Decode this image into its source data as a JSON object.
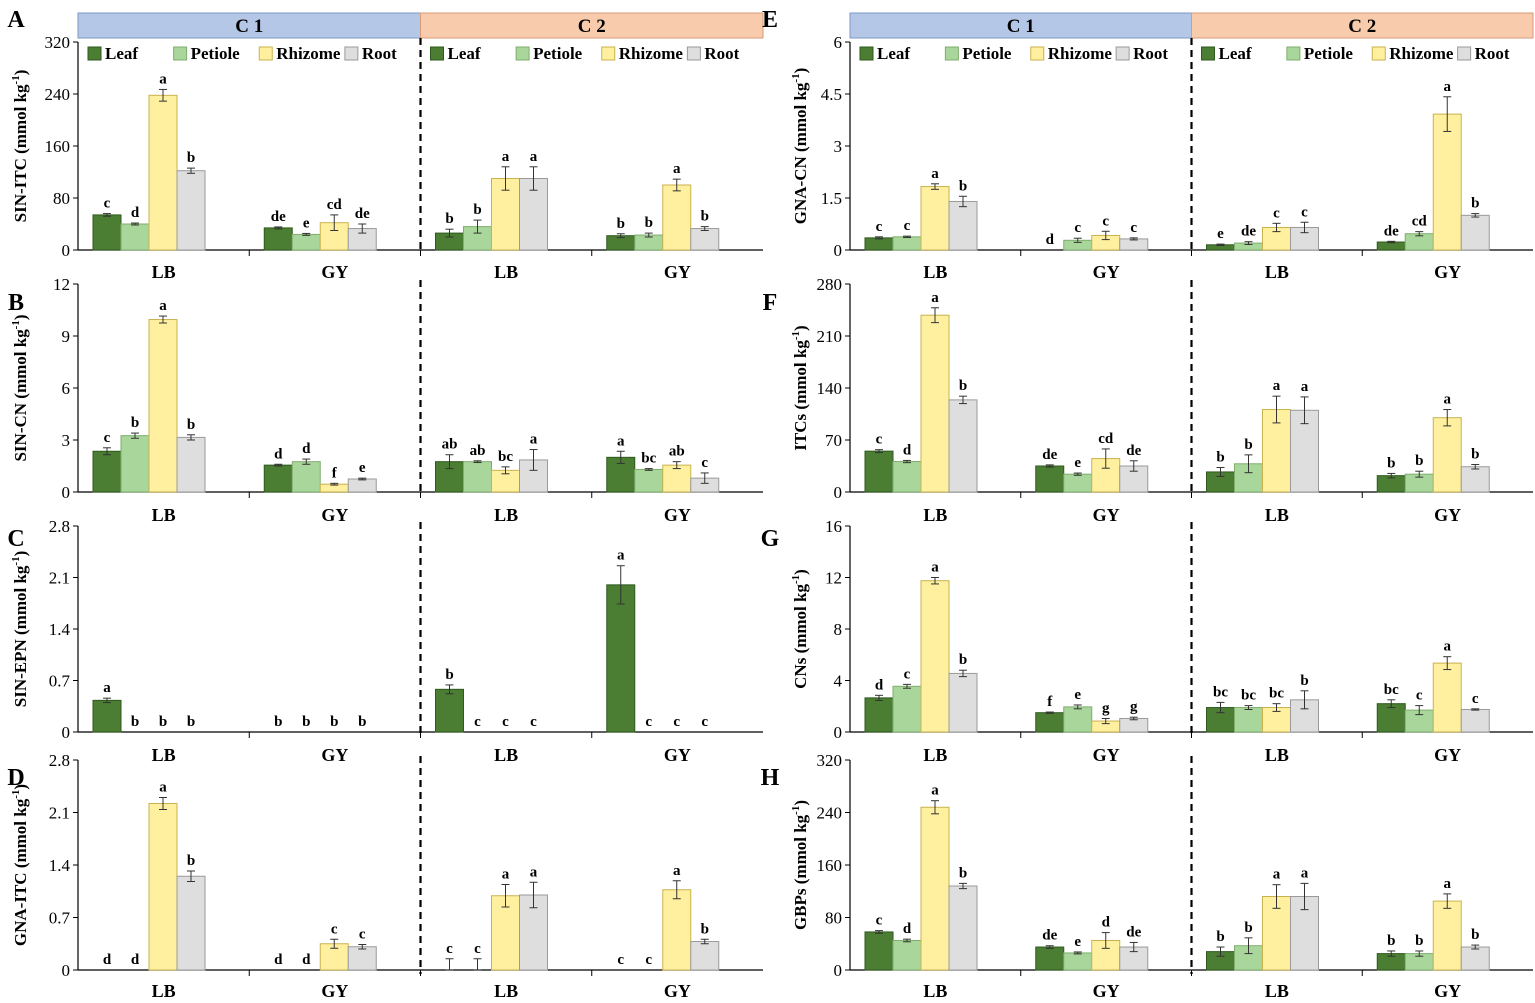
{
  "colors": {
    "leaf": "#4b7d32",
    "petiole": "#a9d69a",
    "rhizome": "#fff0a0",
    "root": "#dedede",
    "c1": "#b4c7e7",
    "c2": "#f8cbad",
    "c1_border": "#7f97c4",
    "c2_border": "#d99b78"
  },
  "legend": [
    "Leaf",
    "Petiole",
    "Rhizome",
    "Root"
  ],
  "headers": [
    "C 1",
    "C 2"
  ],
  "chart_data": [
    {
      "type": "bar",
      "panel": "A",
      "ylabel": "SIN-ITC (mmol kg-1)",
      "yticks": [
        "0",
        "80",
        "160",
        "240",
        "320"
      ],
      "ylim": [
        0,
        320
      ],
      "legend": true,
      "header": true,
      "categories": [
        "LB",
        "GY",
        "LB",
        "GY"
      ],
      "values": [
        [
          54,
          40,
          238,
          122
        ],
        [
          34,
          24,
          42,
          33
        ],
        [
          26,
          36,
          110,
          110
        ],
        [
          22,
          23,
          100,
          33
        ]
      ],
      "errors": [
        [
          2,
          1.5,
          9,
          4
        ],
        [
          1.5,
          1.5,
          12,
          7
        ],
        [
          6,
          10,
          18,
          18
        ],
        [
          3,
          3,
          9,
          3
        ]
      ],
      "labels": [
        [
          "c",
          "d",
          "a",
          "b"
        ],
        [
          "de",
          "e",
          "cd",
          "de"
        ],
        [
          "b",
          "b",
          "a",
          "a"
        ],
        [
          "b",
          "b",
          "a",
          "b"
        ]
      ]
    },
    {
      "type": "bar",
      "panel": "B",
      "ylabel": "SIN-CN (mmol kg-1)",
      "yticks": [
        "0",
        "3",
        "6",
        "9",
        "12"
      ],
      "ylim": [
        0,
        12
      ],
      "legend": false,
      "header": false,
      "categories": [
        "LB",
        "GY",
        "LB",
        "GY"
      ],
      "values": [
        [
          2.35,
          3.25,
          9.95,
          3.15
        ],
        [
          1.55,
          1.75,
          0.45,
          0.75
        ],
        [
          1.75,
          1.75,
          1.25,
          1.85
        ],
        [
          2,
          1.3,
          1.55,
          0.8
        ]
      ],
      "errors": [
        [
          0.2,
          0.15,
          0.2,
          0.15
        ],
        [
          0.05,
          0.15,
          0.05,
          0.05
        ],
        [
          0.4,
          0.05,
          0.2,
          0.6
        ],
        [
          0.35,
          0.05,
          0.2,
          0.3
        ]
      ],
      "labels": [
        [
          "c",
          "b",
          "a",
          "b"
        ],
        [
          "d",
          "d",
          "f",
          "e"
        ],
        [
          "ab",
          "ab",
          "bc",
          "a"
        ],
        [
          "a",
          "bc",
          "ab",
          "c"
        ]
      ]
    },
    {
      "type": "bar",
      "panel": "C",
      "ylabel": "SIN-EPN (mmol kg-1)",
      "yticks": [
        "0",
        "0.7",
        "1.4",
        "2.1",
        "2.8"
      ],
      "ylim": [
        0,
        2.8
      ],
      "legend": false,
      "header": false,
      "categories": [
        "LB",
        "GY",
        "LB",
        "GY"
      ],
      "values": [
        [
          0.43,
          0,
          0,
          0
        ],
        [
          0,
          0,
          0,
          0
        ],
        [
          0.58,
          0,
          0,
          0
        ],
        [
          2.0,
          0,
          0,
          0
        ]
      ],
      "errors": [
        [
          0.03,
          0,
          0,
          0
        ],
        [
          0,
          0,
          0,
          0
        ],
        [
          0.06,
          0,
          0,
          0
        ],
        [
          0.26,
          0,
          0,
          0
        ]
      ],
      "labels": [
        [
          "a",
          "b",
          "b",
          "b"
        ],
        [
          "b",
          "b",
          "b",
          "b"
        ],
        [
          "b",
          "c",
          "c",
          "c"
        ],
        [
          "a",
          "c",
          "c",
          "c"
        ]
      ]
    },
    {
      "type": "bar",
      "panel": "D",
      "ylabel": "GNA-ITC (mmol kg-1)",
      "yticks": [
        "0",
        "0.7",
        "1.4",
        "2.1",
        "2.8"
      ],
      "ylim": [
        0,
        2.8
      ],
      "legend": false,
      "header": false,
      "categories": [
        "LB",
        "GY",
        "LB",
        "GY"
      ],
      "values": [
        [
          0,
          0,
          2.22,
          1.25
        ],
        [
          0,
          0,
          0.35,
          0.31
        ],
        [
          0,
          0,
          0.99,
          1.0
        ],
        [
          0,
          0,
          1.07,
          0.38
        ]
      ],
      "errors": [
        [
          0,
          0,
          0.08,
          0.07
        ],
        [
          0,
          0,
          0.06,
          0.03
        ],
        [
          0.15,
          0.15,
          0.15,
          0.17
        ],
        [
          0,
          0,
          0.12,
          0.03
        ]
      ],
      "labels": [
        [
          "d",
          "d",
          "a",
          "b"
        ],
        [
          "d",
          "d",
          "c",
          "c"
        ],
        [
          "c",
          "c",
          "a",
          "a"
        ],
        [
          "c",
          "c",
          "a",
          "b"
        ]
      ]
    },
    {
      "type": "bar",
      "panel": "E",
      "ylabel": "GNA-CN (mmol kg-1)",
      "yticks": [
        "0",
        "1.5",
        "3",
        "4.5",
        "6"
      ],
      "ylim": [
        0,
        6
      ],
      "legend": true,
      "header": true,
      "categories": [
        "LB",
        "GY",
        "LB",
        "GY"
      ],
      "values": [
        [
          0.35,
          0.38,
          1.83,
          1.4
        ],
        [
          0,
          0.28,
          0.42,
          0.32
        ],
        [
          0.15,
          0.2,
          0.65,
          0.65
        ],
        [
          0.23,
          0.47,
          3.92,
          1.0
        ]
      ],
      "errors": [
        [
          0.03,
          0.02,
          0.08,
          0.15
        ],
        [
          0,
          0.06,
          0.12,
          0.03
        ],
        [
          0.02,
          0.04,
          0.12,
          0.15
        ],
        [
          0.02,
          0.06,
          0.5,
          0.05
        ]
      ],
      "labels": [
        [
          "c",
          "c",
          "a",
          "b"
        ],
        [
          "d",
          "c",
          "c",
          "c"
        ],
        [
          "e",
          "de",
          "c",
          "c"
        ],
        [
          "de",
          "cd",
          "a",
          "b"
        ]
      ]
    },
    {
      "type": "bar",
      "panel": "F",
      "ylabel": "ITCs (mmol kg-1)",
      "yticks": [
        "0",
        "70",
        "140",
        "210",
        "280"
      ],
      "ylim": [
        0,
        280
      ],
      "legend": false,
      "header": false,
      "categories": [
        "LB",
        "GY",
        "LB",
        "GY"
      ],
      "values": [
        [
          55,
          41,
          238,
          124
        ],
        [
          35,
          24,
          45,
          35
        ],
        [
          27,
          38,
          111,
          110
        ],
        [
          22,
          24,
          100,
          34
        ]
      ],
      "errors": [
        [
          2,
          1.5,
          10,
          5
        ],
        [
          1.5,
          1.5,
          13,
          7
        ],
        [
          6,
          12,
          18,
          18
        ],
        [
          3,
          4,
          11,
          3
        ]
      ],
      "labels": [
        [
          "c",
          "d",
          "a",
          "b"
        ],
        [
          "de",
          "e",
          "cd",
          "de"
        ],
        [
          "b",
          "b",
          "a",
          "a"
        ],
        [
          "b",
          "b",
          "a",
          "b"
        ]
      ]
    },
    {
      "type": "bar",
      "panel": "G",
      "ylabel": "CNs (mmol kg-1)",
      "yticks": [
        "0",
        "4",
        "8",
        "12",
        "16"
      ],
      "ylim": [
        0,
        16
      ],
      "legend": false,
      "header": false,
      "categories": [
        "LB",
        "GY",
        "LB",
        "GY"
      ],
      "values": [
        [
          2.65,
          3.55,
          11.75,
          4.55
        ],
        [
          1.5,
          1.95,
          0.85,
          1.05
        ],
        [
          1.9,
          1.9,
          1.9,
          2.5
        ],
        [
          2.2,
          1.7,
          5.35,
          1.75
        ]
      ],
      "errors": [
        [
          0.2,
          0.15,
          0.25,
          0.25
        ],
        [
          0.05,
          0.15,
          0.2,
          0.1
        ],
        [
          0.4,
          0.15,
          0.3,
          0.7
        ],
        [
          0.3,
          0.35,
          0.5,
          0.05
        ]
      ],
      "labels": [
        [
          "d",
          "c",
          "a",
          "b"
        ],
        [
          "f",
          "e",
          "g",
          "g"
        ],
        [
          "bc",
          "bc",
          "bc",
          "b"
        ],
        [
          "bc",
          "c",
          "a",
          "c"
        ]
      ]
    },
    {
      "type": "bar",
      "panel": "H",
      "ylabel": "GBPs (mmol kg-1)",
      "yticks": [
        "0",
        "80",
        "160",
        "240",
        "320"
      ],
      "ylim": [
        0,
        320
      ],
      "legend": false,
      "header": false,
      "categories": [
        "LB",
        "GY",
        "LB",
        "GY"
      ],
      "values": [
        [
          58,
          45,
          248,
          128
        ],
        [
          35,
          26,
          45,
          35
        ],
        [
          28,
          37,
          112,
          112
        ],
        [
          25,
          25,
          105,
          35
        ]
      ],
      "errors": [
        [
          2,
          2,
          10,
          4
        ],
        [
          2,
          1.5,
          12,
          7
        ],
        [
          7,
          12,
          18,
          20
        ],
        [
          4,
          4,
          11,
          3
        ]
      ],
      "labels": [
        [
          "c",
          "d",
          "a",
          "b"
        ],
        [
          "de",
          "e",
          "d",
          "de"
        ],
        [
          "b",
          "b",
          "a",
          "a"
        ],
        [
          "b",
          "b",
          "a",
          "b"
        ]
      ]
    }
  ]
}
